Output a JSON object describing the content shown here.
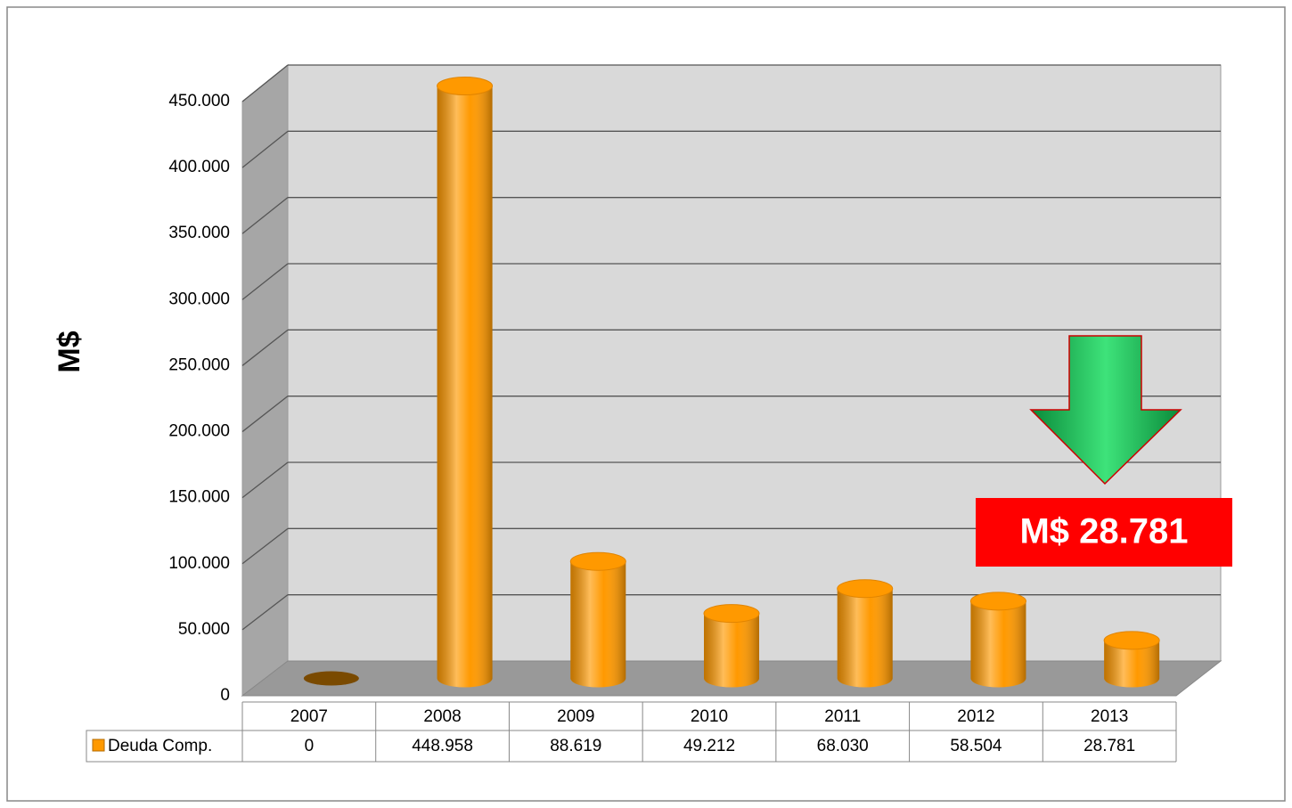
{
  "chart_data": {
    "type": "bar3d",
    "y_axis_label": "M$",
    "categories": [
      "2007",
      "2008",
      "2009",
      "2010",
      "2011",
      "2012",
      "2013"
    ],
    "series": [
      {
        "name": "Deuda Comp.",
        "color": "#ff9900",
        "values": [
          0,
          448958,
          88619,
          49212,
          68030,
          58504,
          28781
        ],
        "value_labels": [
          "0",
          "448.958",
          "88.619",
          "49.212",
          "68.030",
          "58.504",
          "28.781"
        ]
      }
    ],
    "ylim": [
      0,
      450000
    ],
    "yticks": [
      0,
      {
        "value": 50000,
        "label": "50.000"
      },
      {
        "value": 100000,
        "label": "100.000"
      },
      {
        "value": 150000,
        "label": "150.000"
      },
      {
        "value": 200000,
        "label": "200.000"
      },
      {
        "value": 250000,
        "label": "250.000"
      },
      {
        "value": 300000,
        "label": "300.000"
      },
      {
        "value": 350000,
        "label": "350.000"
      },
      {
        "value": 400000,
        "label": "400.000"
      },
      {
        "value": 450000,
        "label": "450.000"
      }
    ],
    "grid": true,
    "annotation": "M$ 28.781"
  }
}
